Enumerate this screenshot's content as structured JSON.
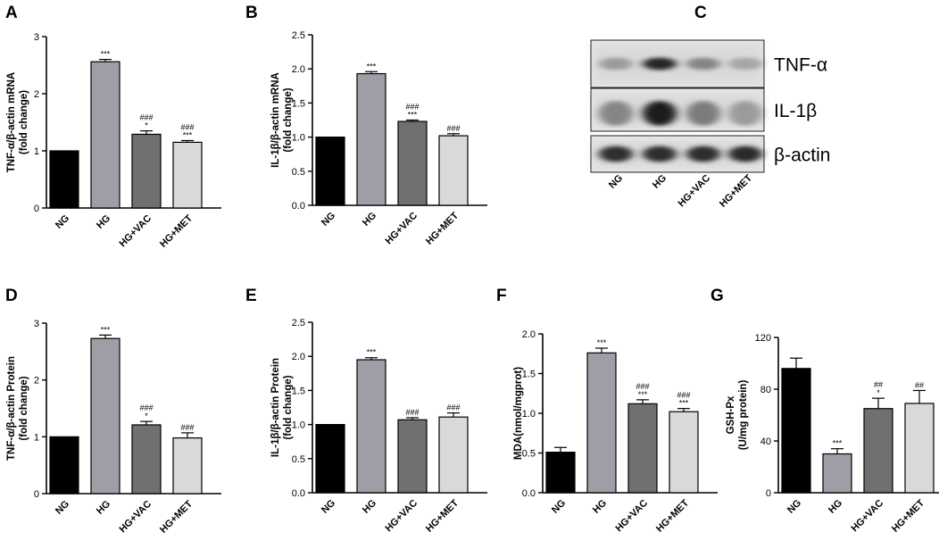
{
  "chart_data": [
    {
      "type": "bar",
      "panel": "A",
      "categories": [
        "NG",
        "HG",
        "HG+VAC",
        "HG+MET"
      ],
      "values": [
        1.0,
        2.56,
        1.29,
        1.15
      ],
      "errors": [
        0,
        0.04,
        0.06,
        0.03
      ],
      "ylabel": [
        "TNF-α/β-actin mRNA",
        "(fold change)"
      ],
      "ylim": [
        0,
        3
      ],
      "yticks": [
        "0",
        "1",
        "2",
        "3"
      ],
      "annotations": [
        [],
        [
          "***"
        ],
        [
          "*",
          "###"
        ],
        [
          "***",
          "###"
        ]
      ],
      "colors": [
        "#000000",
        "#9e9ea6",
        "#707070",
        "#d9d9d9"
      ]
    },
    {
      "type": "bar",
      "panel": "B",
      "categories": [
        "NG",
        "HG",
        "HG+VAC",
        "HG+MET"
      ],
      "values": [
        1.0,
        1.93,
        1.23,
        1.02
      ],
      "errors": [
        0,
        0.03,
        0.02,
        0.03
      ],
      "ylabel": [
        "IL-1β/β-actin mRNA",
        "(fold change)"
      ],
      "ylim": [
        0,
        2.5
      ],
      "yticks": [
        "0.0",
        "0.5",
        "1.0",
        "1.5",
        "2.0",
        "2.5"
      ],
      "annotations": [
        [],
        [
          "***"
        ],
        [
          "***",
          "###"
        ],
        [
          "###"
        ]
      ],
      "colors": [
        "#000000",
        "#9e9ea6",
        "#707070",
        "#d9d9d9"
      ]
    },
    {
      "type": "bar",
      "panel": "D",
      "categories": [
        "NG",
        "HG",
        "HG+VAC",
        "HG+MET"
      ],
      "values": [
        1.0,
        2.73,
        1.21,
        0.98
      ],
      "errors": [
        0,
        0.06,
        0.06,
        0.09
      ],
      "ylabel": [
        "TNF-α/β-actin Protein",
        "(fold change)"
      ],
      "ylim": [
        0,
        3
      ],
      "yticks": [
        "0",
        "1",
        "2",
        "3"
      ],
      "annotations": [
        [],
        [
          "***"
        ],
        [
          "*",
          "###"
        ],
        [
          "###"
        ]
      ],
      "colors": [
        "#000000",
        "#9e9ea6",
        "#707070",
        "#d9d9d9"
      ]
    },
    {
      "type": "bar",
      "panel": "E",
      "categories": [
        "NG",
        "HG",
        "HG+VAC",
        "HG+MET"
      ],
      "values": [
        1.0,
        1.95,
        1.07,
        1.11
      ],
      "errors": [
        0,
        0.03,
        0.03,
        0.06
      ],
      "ylabel": [
        "IL-1β/β-actin Protein",
        "(fold change)"
      ],
      "ylim": [
        0,
        2.5
      ],
      "yticks": [
        "0.0",
        "0.5",
        "1.0",
        "1.5",
        "2.0",
        "2.5"
      ],
      "annotations": [
        [],
        [
          "***"
        ],
        [
          "###"
        ],
        [
          "###"
        ]
      ],
      "colors": [
        "#000000",
        "#9e9ea6",
        "#707070",
        "#d9d9d9"
      ]
    },
    {
      "type": "bar",
      "panel": "F",
      "categories": [
        "NG",
        "HG",
        "HG+VAC",
        "HG+MET"
      ],
      "values": [
        0.51,
        1.76,
        1.12,
        1.02
      ],
      "errors": [
        0.06,
        0.06,
        0.05,
        0.04
      ],
      "ylabel": [
        "MDA(nmol/mgprot)"
      ],
      "ylim": [
        0,
        2.0
      ],
      "yticks": [
        "0.0",
        "0.5",
        "1.0",
        "1.5",
        "2.0"
      ],
      "annotations": [
        [],
        [
          "***"
        ],
        [
          "***",
          "###"
        ],
        [
          "***",
          "###"
        ]
      ],
      "colors": [
        "#000000",
        "#9e9ea6",
        "#707070",
        "#d9d9d9"
      ]
    },
    {
      "type": "bar",
      "panel": "G",
      "categories": [
        "NG",
        "HG",
        "HG+VAC",
        "HG+MET"
      ],
      "values": [
        96,
        30,
        65,
        69
      ],
      "errors": [
        8,
        4,
        8,
        10
      ],
      "ylabel": [
        "GSH-Px",
        "(U/mg protein)"
      ],
      "ylim": [
        0,
        120
      ],
      "yticks": [
        "0",
        "40",
        "80",
        "120"
      ],
      "annotations": [
        [],
        [
          "***"
        ],
        [
          "*",
          "##"
        ],
        [
          "##"
        ]
      ],
      "colors": [
        "#000000",
        "#9e9ea6",
        "#707070",
        "#d9d9d9"
      ]
    }
  ],
  "blot": {
    "panel": "C",
    "bands": [
      "TNF-α",
      "IL-1β",
      "β-actin"
    ],
    "categories": [
      "NG",
      "HG",
      "HG+VAC",
      "HG+MET"
    ],
    "intensity": [
      [
        0.35,
        0.9,
        0.45,
        0.3
      ],
      [
        0.45,
        0.95,
        0.5,
        0.35
      ],
      [
        0.85,
        0.85,
        0.85,
        0.88
      ]
    ]
  }
}
